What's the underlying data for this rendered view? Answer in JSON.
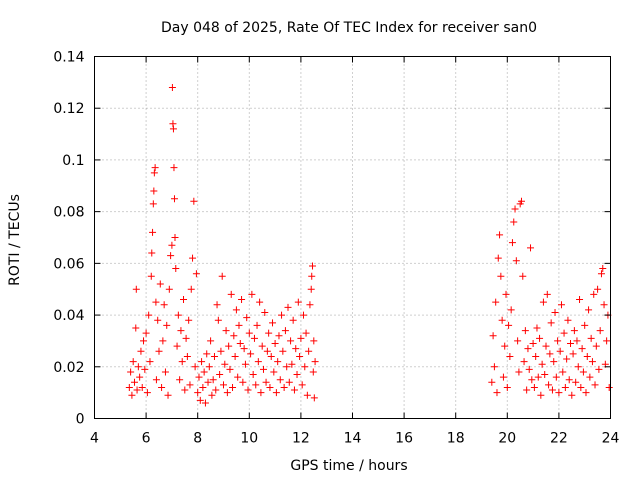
{
  "chart_data": {
    "type": "scatter",
    "title": "Day 048 of 2025, Rate Of TEC Index for receiver san0",
    "xlabel": "GPS time / hours",
    "ylabel": "ROTI / TECUs",
    "xlim": [
      4,
      24
    ],
    "ylim": [
      0,
      0.14
    ],
    "xticks": [
      4,
      6,
      8,
      10,
      12,
      14,
      16,
      18,
      20,
      22,
      24
    ],
    "xtick_labels": [
      "4",
      "6",
      "8",
      "10",
      "12",
      "14",
      "16",
      "18",
      "20",
      "22",
      "24"
    ],
    "yticks": [
      0,
      0.02,
      0.04,
      0.06,
      0.08,
      0.1,
      0.12,
      0.14
    ],
    "ytick_labels": [
      "0",
      "0.02",
      "0.04",
      "0.06",
      "0.08",
      "0.1",
      "0.12",
      "0.14"
    ],
    "grid": true,
    "marker": "+",
    "color": "#ff0000",
    "series": [
      {
        "name": "ROTI",
        "points": [
          [
            5.35,
            0.012
          ],
          [
            5.4,
            0.018
          ],
          [
            5.45,
            0.009
          ],
          [
            5.5,
            0.022
          ],
          [
            5.55,
            0.014
          ],
          [
            5.6,
            0.035
          ],
          [
            5.62,
            0.05
          ],
          [
            5.65,
            0.011
          ],
          [
            5.7,
            0.02
          ],
          [
            5.75,
            0.016
          ],
          [
            5.8,
            0.026
          ],
          [
            5.85,
            0.012
          ],
          [
            5.9,
            0.03
          ],
          [
            5.95,
            0.019
          ],
          [
            6.0,
            0.033
          ],
          [
            6.05,
            0.01
          ],
          [
            6.1,
            0.04
          ],
          [
            6.15,
            0.022
          ],
          [
            6.2,
            0.055
          ],
          [
            6.22,
            0.064
          ],
          [
            6.25,
            0.072
          ],
          [
            6.28,
            0.083
          ],
          [
            6.3,
            0.088
          ],
          [
            6.32,
            0.095
          ],
          [
            6.35,
            0.097
          ],
          [
            6.38,
            0.045
          ],
          [
            6.4,
            0.015
          ],
          [
            6.45,
            0.038
          ],
          [
            6.5,
            0.026
          ],
          [
            6.55,
            0.052
          ],
          [
            6.6,
            0.012
          ],
          [
            6.65,
            0.03
          ],
          [
            6.7,
            0.044
          ],
          [
            6.75,
            0.018
          ],
          [
            6.8,
            0.036
          ],
          [
            6.85,
            0.009
          ],
          [
            6.9,
            0.05
          ],
          [
            6.95,
            0.063
          ],
          [
            7.0,
            0.067
          ],
          [
            7.02,
            0.128
          ],
          [
            7.04,
            0.114
          ],
          [
            7.06,
            0.112
          ],
          [
            7.08,
            0.097
          ],
          [
            7.1,
            0.085
          ],
          [
            7.12,
            0.07
          ],
          [
            7.15,
            0.058
          ],
          [
            7.2,
            0.028
          ],
          [
            7.25,
            0.04
          ],
          [
            7.3,
            0.015
          ],
          [
            7.35,
            0.034
          ],
          [
            7.4,
            0.022
          ],
          [
            7.45,
            0.046
          ],
          [
            7.5,
            0.011
          ],
          [
            7.55,
            0.031
          ],
          [
            7.6,
            0.024
          ],
          [
            7.65,
            0.038
          ],
          [
            7.7,
            0.013
          ],
          [
            7.75,
            0.05
          ],
          [
            7.8,
            0.062
          ],
          [
            7.85,
            0.084
          ],
          [
            7.9,
            0.02
          ],
          [
            7.95,
            0.056
          ],
          [
            8.0,
            0.01
          ],
          [
            8.05,
            0.016
          ],
          [
            8.1,
            0.007
          ],
          [
            8.15,
            0.022
          ],
          [
            8.2,
            0.012
          ],
          [
            8.25,
            0.018
          ],
          [
            8.3,
            0.006
          ],
          [
            8.35,
            0.025
          ],
          [
            8.4,
            0.014
          ],
          [
            8.45,
            0.02
          ],
          [
            8.5,
            0.03
          ],
          [
            8.55,
            0.009
          ],
          [
            8.6,
            0.015
          ],
          [
            8.65,
            0.024
          ],
          [
            8.7,
            0.011
          ],
          [
            8.75,
            0.044
          ],
          [
            8.8,
            0.038
          ],
          [
            8.85,
            0.017
          ],
          [
            8.9,
            0.026
          ],
          [
            8.95,
            0.055
          ],
          [
            9.0,
            0.013
          ],
          [
            9.05,
            0.021
          ],
          [
            9.1,
            0.034
          ],
          [
            9.15,
            0.01
          ],
          [
            9.2,
            0.028
          ],
          [
            9.25,
            0.019
          ],
          [
            9.3,
            0.048
          ],
          [
            9.35,
            0.012
          ],
          [
            9.4,
            0.032
          ],
          [
            9.45,
            0.024
          ],
          [
            9.5,
            0.042
          ],
          [
            9.55,
            0.016
          ],
          [
            9.6,
            0.036
          ],
          [
            9.65,
            0.029
          ],
          [
            9.7,
            0.046
          ],
          [
            9.75,
            0.014
          ],
          [
            9.8,
            0.027
          ],
          [
            9.85,
            0.021
          ],
          [
            9.9,
            0.039
          ],
          [
            9.95,
            0.011
          ],
          [
            10.0,
            0.033
          ],
          [
            10.05,
            0.025
          ],
          [
            10.1,
            0.048
          ],
          [
            10.15,
            0.017
          ],
          [
            10.2,
            0.031
          ],
          [
            10.25,
            0.013
          ],
          [
            10.3,
            0.036
          ],
          [
            10.35,
            0.022
          ],
          [
            10.4,
            0.045
          ],
          [
            10.45,
            0.01
          ],
          [
            10.5,
            0.028
          ],
          [
            10.55,
            0.019
          ],
          [
            10.6,
            0.041
          ],
          [
            10.65,
            0.014
          ],
          [
            10.7,
            0.026
          ],
          [
            10.75,
            0.033
          ],
          [
            10.8,
            0.012
          ],
          [
            10.85,
            0.024
          ],
          [
            10.9,
            0.037
          ],
          [
            10.95,
            0.018
          ],
          [
            11.0,
            0.029
          ],
          [
            11.05,
            0.01
          ],
          [
            11.1,
            0.022
          ],
          [
            11.15,
            0.032
          ],
          [
            11.2,
            0.015
          ],
          [
            11.25,
            0.04
          ],
          [
            11.3,
            0.026
          ],
          [
            11.35,
            0.012
          ],
          [
            11.4,
            0.034
          ],
          [
            11.45,
            0.02
          ],
          [
            11.5,
            0.043
          ],
          [
            11.55,
            0.014
          ],
          [
            11.6,
            0.03
          ],
          [
            11.65,
            0.021
          ],
          [
            11.7,
            0.038
          ],
          [
            11.75,
            0.011
          ],
          [
            11.8,
            0.027
          ],
          [
            11.85,
            0.017
          ],
          [
            11.9,
            0.045
          ],
          [
            11.95,
            0.024
          ],
          [
            12.0,
            0.031
          ],
          [
            12.05,
            0.013
          ],
          [
            12.1,
            0.04
          ],
          [
            12.15,
            0.02
          ],
          [
            12.2,
            0.033
          ],
          [
            12.25,
            0.009
          ],
          [
            12.3,
            0.026
          ],
          [
            12.35,
            0.044
          ],
          [
            12.4,
            0.05
          ],
          [
            12.42,
            0.055
          ],
          [
            12.45,
            0.059
          ],
          [
            12.48,
            0.018
          ],
          [
            12.5,
            0.03
          ],
          [
            12.52,
            0.008
          ],
          [
            12.55,
            0.022
          ],
          [
            19.4,
            0.014
          ],
          [
            19.45,
            0.032
          ],
          [
            19.5,
            0.02
          ],
          [
            19.55,
            0.045
          ],
          [
            19.6,
            0.01
          ],
          [
            19.65,
            0.062
          ],
          [
            19.7,
            0.071
          ],
          [
            19.75,
            0.055
          ],
          [
            19.8,
            0.038
          ],
          [
            19.85,
            0.016
          ],
          [
            19.9,
            0.028
          ],
          [
            19.95,
            0.048
          ],
          [
            20.0,
            0.012
          ],
          [
            20.05,
            0.036
          ],
          [
            20.1,
            0.024
          ],
          [
            20.15,
            0.042
          ],
          [
            20.2,
            0.068
          ],
          [
            20.25,
            0.076
          ],
          [
            20.3,
            0.081
          ],
          [
            20.35,
            0.061
          ],
          [
            20.4,
            0.03
          ],
          [
            20.45,
            0.018
          ],
          [
            20.5,
            0.083
          ],
          [
            20.55,
            0.084
          ],
          [
            20.6,
            0.055
          ],
          [
            20.65,
            0.022
          ],
          [
            20.7,
            0.034
          ],
          [
            20.75,
            0.011
          ],
          [
            20.8,
            0.027
          ],
          [
            20.85,
            0.019
          ],
          [
            20.9,
            0.066
          ],
          [
            20.95,
            0.015
          ],
          [
            21.0,
            0.029
          ],
          [
            21.05,
            0.012
          ],
          [
            21.1,
            0.024
          ],
          [
            21.15,
            0.035
          ],
          [
            21.2,
            0.016
          ],
          [
            21.25,
            0.031
          ],
          [
            21.3,
            0.009
          ],
          [
            21.35,
            0.021
          ],
          [
            21.4,
            0.045
          ],
          [
            21.45,
            0.017
          ],
          [
            21.5,
            0.028
          ],
          [
            21.55,
            0.048
          ],
          [
            21.6,
            0.013
          ],
          [
            21.65,
            0.025
          ],
          [
            21.7,
            0.037
          ],
          [
            21.75,
            0.011
          ],
          [
            21.8,
            0.022
          ],
          [
            21.85,
            0.041
          ],
          [
            21.9,
            0.016
          ],
          [
            21.95,
            0.03
          ],
          [
            22.0,
            0.01
          ],
          [
            22.05,
            0.026
          ],
          [
            22.1,
            0.044
          ],
          [
            22.15,
            0.018
          ],
          [
            22.2,
            0.033
          ],
          [
            22.25,
            0.012
          ],
          [
            22.3,
            0.023
          ],
          [
            22.35,
            0.038
          ],
          [
            22.4,
            0.015
          ],
          [
            22.45,
            0.029
          ],
          [
            22.5,
            0.009
          ],
          [
            22.55,
            0.025
          ],
          [
            22.6,
            0.034
          ],
          [
            22.65,
            0.014
          ],
          [
            22.7,
            0.03
          ],
          [
            22.75,
            0.02
          ],
          [
            22.8,
            0.046
          ],
          [
            22.85,
            0.012
          ],
          [
            22.9,
            0.027
          ],
          [
            22.95,
            0.018
          ],
          [
            23.0,
            0.036
          ],
          [
            23.05,
            0.01
          ],
          [
            23.1,
            0.024
          ],
          [
            23.15,
            0.042
          ],
          [
            23.2,
            0.016
          ],
          [
            23.25,
            0.031
          ],
          [
            23.3,
            0.022
          ],
          [
            23.35,
            0.048
          ],
          [
            23.4,
            0.013
          ],
          [
            23.45,
            0.028
          ],
          [
            23.5,
            0.05
          ],
          [
            23.55,
            0.019
          ],
          [
            23.6,
            0.034
          ],
          [
            23.65,
            0.056
          ],
          [
            23.7,
            0.058
          ],
          [
            23.75,
            0.044
          ],
          [
            23.8,
            0.021
          ],
          [
            23.85,
            0.03
          ],
          [
            23.9,
            0.04
          ],
          [
            23.95,
            0.012
          ]
        ]
      }
    ]
  }
}
